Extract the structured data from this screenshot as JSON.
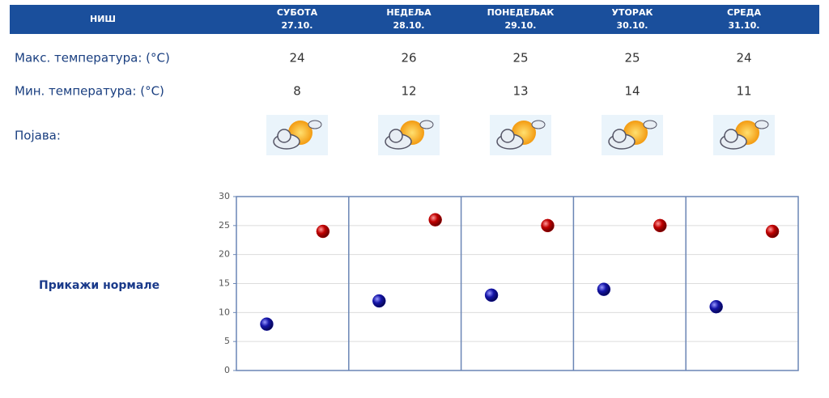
{
  "header": {
    "city": "НИШ",
    "days": [
      {
        "name": "СУБОТА",
        "date": "27.10."
      },
      {
        "name": "НЕДЕЉА",
        "date": "28.10."
      },
      {
        "name": "ПОНЕДЕЉАК",
        "date": "29.10."
      },
      {
        "name": "УТОРАК",
        "date": "30.10."
      },
      {
        "name": "СРЕДА",
        "date": "31.10."
      }
    ]
  },
  "phenomenon_label": "Појава:",
  "link": "Прикажи нормале",
  "chart_data": {
    "type": "scatter",
    "series": [
      {
        "name": "Макс. температура: (°C)",
        "color": "#c00000",
        "values": [
          24,
          26,
          25,
          25,
          24
        ]
      },
      {
        "name": "Мин. температура: (°C)",
        "color": "#1515a8",
        "values": [
          8,
          12,
          13,
          14,
          11
        ]
      }
    ],
    "ylim": [
      0,
      30
    ],
    "yticks": [
      0,
      5,
      10,
      15,
      20,
      25,
      30
    ],
    "grid": true
  }
}
